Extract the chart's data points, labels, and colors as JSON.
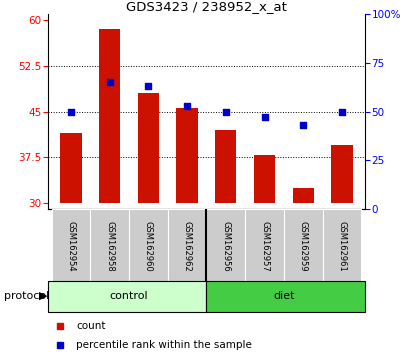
{
  "title": "GDS3423 / 238952_x_at",
  "samples": [
    "GSM162954",
    "GSM162958",
    "GSM162960",
    "GSM162962",
    "GSM162956",
    "GSM162957",
    "GSM162959",
    "GSM162961"
  ],
  "count_values": [
    41.5,
    58.5,
    48.0,
    45.5,
    42.0,
    37.8,
    32.5,
    39.5
  ],
  "percentile_values": [
    50,
    65,
    63,
    53,
    50,
    47,
    43,
    50
  ],
  "ylim_left": [
    29,
    61
  ],
  "ylim_right": [
    0,
    100
  ],
  "yticks_left": [
    30,
    37.5,
    45,
    52.5,
    60
  ],
  "yticks_right": [
    0,
    25,
    50,
    75,
    100
  ],
  "bar_color": "#cc1100",
  "dot_color": "#0000cc",
  "control_label": "control",
  "diet_label": "diet",
  "protocol_label": "protocol",
  "legend_count": "count",
  "legend_percentile": "percentile rank within the sample",
  "control_color": "#ccffcc",
  "diet_color": "#44cc44",
  "tick_label_area_color": "#cccccc",
  "bar_bottom": 30,
  "gridlines": [
    37.5,
    45,
    52.5
  ]
}
